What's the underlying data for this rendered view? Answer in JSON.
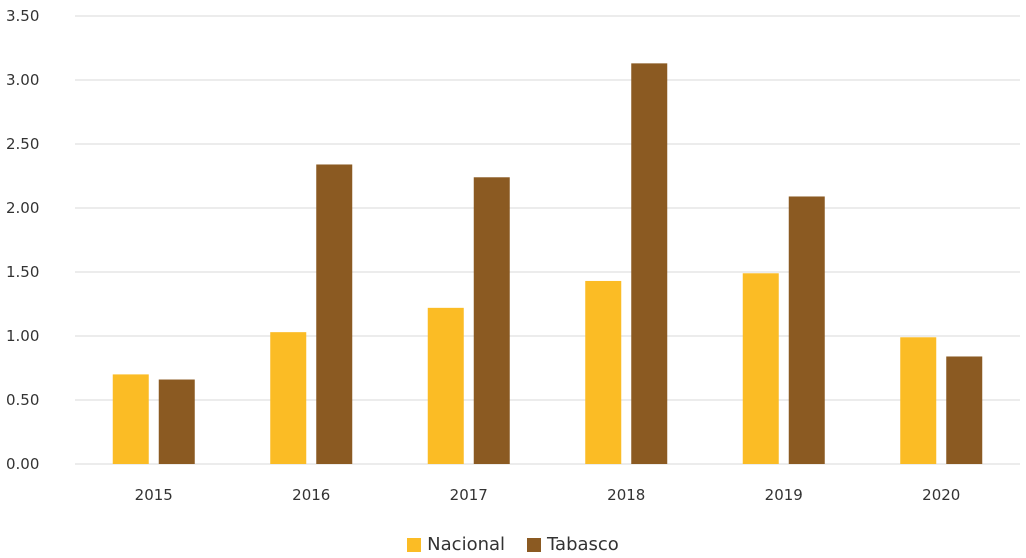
{
  "chart_data": {
    "type": "bar",
    "categories": [
      "2015",
      "2016",
      "2017",
      "2018",
      "2019",
      "2020"
    ],
    "series": [
      {
        "name": "Nacional",
        "color": "#FBBC25",
        "values": [
          0.7,
          1.03,
          1.22,
          1.43,
          1.49,
          0.99
        ]
      },
      {
        "name": "Tabasco",
        "color": "#8B5A22",
        "values": [
          0.66,
          2.34,
          2.24,
          3.13,
          2.09,
          0.84
        ]
      }
    ],
    "y_ticks": [
      "0.00",
      "0.50",
      "1.00",
      "1.50",
      "2.00",
      "2.50",
      "3.00",
      "3.50"
    ],
    "ylim": [
      0,
      3.5
    ],
    "grid": true,
    "legend_position": "bottom-center",
    "title": "",
    "xlabel": "",
    "ylabel": ""
  }
}
